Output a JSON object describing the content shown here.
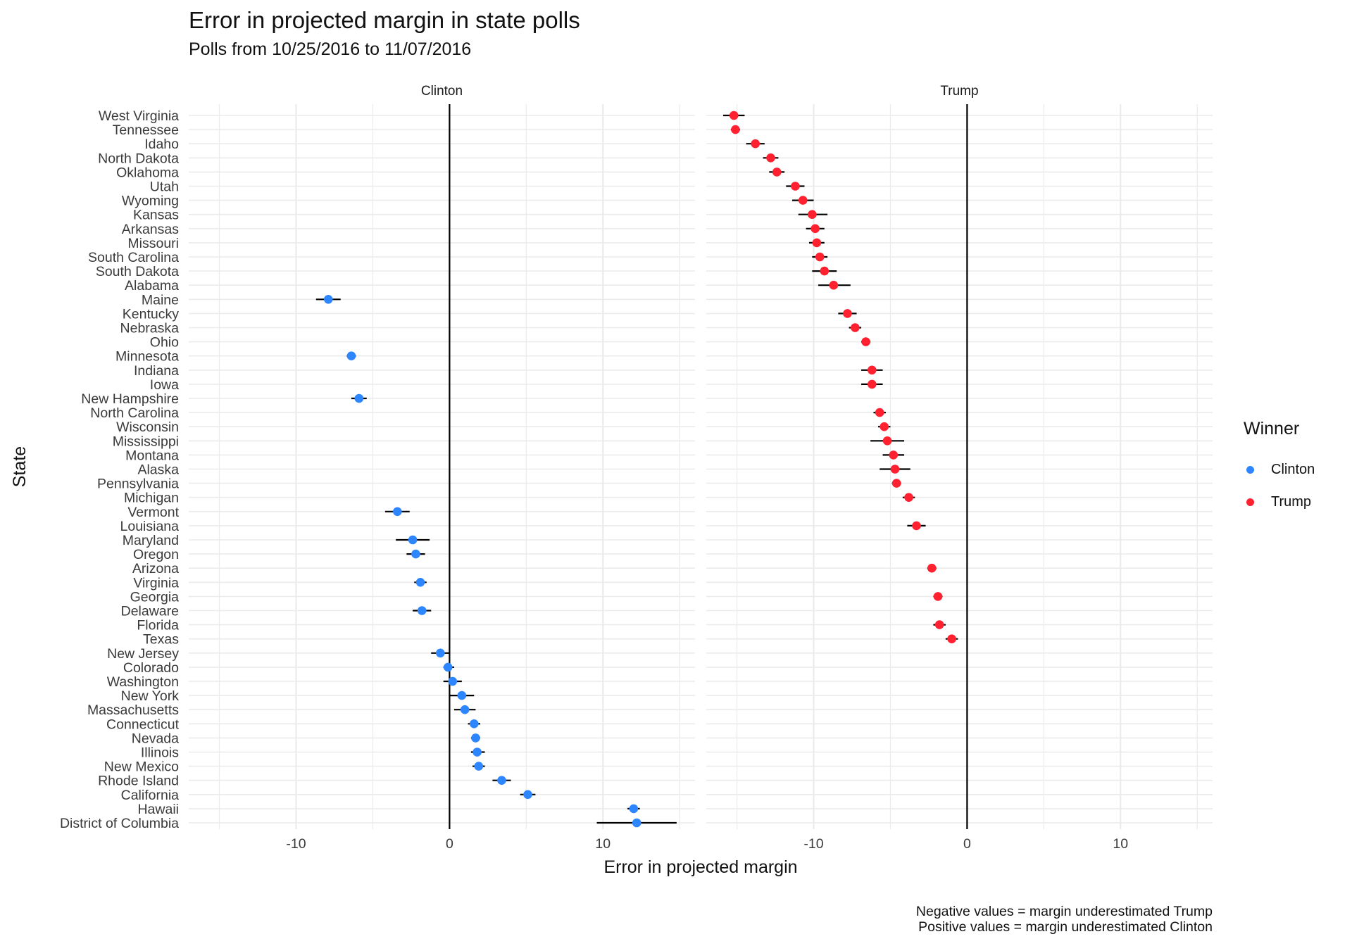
{
  "chart_data": {
    "type": "scatter",
    "title": "Error in projected margin in state polls",
    "subtitle": "Polls from 10/25/2016 to 11/07/2016",
    "xlabel": "Error in projected margin",
    "ylabel": "State",
    "xlim": [
      -17,
      16
    ],
    "x_ticks": [
      -10,
      0,
      10
    ],
    "grid": true,
    "facets": [
      "Clinton",
      "Trump"
    ],
    "legend": {
      "title": "Winner",
      "position": "right",
      "entries": [
        {
          "name": "Clinton",
          "color": "#2E86FF"
        },
        {
          "name": "Trump",
          "color": "#FF2030"
        }
      ]
    },
    "caption": [
      "Negative values = margin underestimated Trump",
      "Positive values = margin underestimated Clinton"
    ],
    "points": [
      {
        "state": "West Virginia",
        "winner": "Trump",
        "x": -15.2,
        "lo": -15.9,
        "hi": -14.5
      },
      {
        "state": "Tennessee",
        "winner": "Trump",
        "x": -15.1,
        "lo": -15.4,
        "hi": -14.8
      },
      {
        "state": "Idaho",
        "winner": "Trump",
        "x": -13.8,
        "lo": -14.4,
        "hi": -13.2
      },
      {
        "state": "North Dakota",
        "winner": "Trump",
        "x": -12.8,
        "lo": -13.3,
        "hi": -12.3
      },
      {
        "state": "Oklahoma",
        "winner": "Trump",
        "x": -12.4,
        "lo": -12.9,
        "hi": -11.9
      },
      {
        "state": "Utah",
        "winner": "Trump",
        "x": -11.2,
        "lo": -11.8,
        "hi": -10.6
      },
      {
        "state": "Wyoming",
        "winner": "Trump",
        "x": -10.7,
        "lo": -11.4,
        "hi": -10.0
      },
      {
        "state": "Kansas",
        "winner": "Trump",
        "x": -10.1,
        "lo": -11.0,
        "hi": -9.1
      },
      {
        "state": "Arkansas",
        "winner": "Trump",
        "x": -9.9,
        "lo": -10.5,
        "hi": -9.3
      },
      {
        "state": "Missouri",
        "winner": "Trump",
        "x": -9.8,
        "lo": -10.3,
        "hi": -9.3
      },
      {
        "state": "South Carolina",
        "winner": "Trump",
        "x": -9.6,
        "lo": -10.1,
        "hi": -9.1
      },
      {
        "state": "South Dakota",
        "winner": "Trump",
        "x": -9.3,
        "lo": -10.1,
        "hi": -8.5
      },
      {
        "state": "Alabama",
        "winner": "Trump",
        "x": -8.7,
        "lo": -9.7,
        "hi": -7.6
      },
      {
        "state": "Maine",
        "winner": "Clinton",
        "x": -7.9,
        "lo": -8.7,
        "hi": -7.1
      },
      {
        "state": "Kentucky",
        "winner": "Trump",
        "x": -7.8,
        "lo": -8.4,
        "hi": -7.2
      },
      {
        "state": "Nebraska",
        "winner": "Trump",
        "x": -7.3,
        "lo": -7.7,
        "hi": -6.9
      },
      {
        "state": "Ohio",
        "winner": "Trump",
        "x": -6.6,
        "lo": -6.9,
        "hi": -6.3
      },
      {
        "state": "Minnesota",
        "winner": "Clinton",
        "x": -6.4,
        "lo": -6.7,
        "hi": -6.1
      },
      {
        "state": "Indiana",
        "winner": "Trump",
        "x": -6.2,
        "lo": -6.9,
        "hi": -5.5
      },
      {
        "state": "Iowa",
        "winner": "Trump",
        "x": -6.2,
        "lo": -6.9,
        "hi": -5.5
      },
      {
        "state": "New Hampshire",
        "winner": "Clinton",
        "x": -5.9,
        "lo": -6.4,
        "hi": -5.4
      },
      {
        "state": "North Carolina",
        "winner": "Trump",
        "x": -5.7,
        "lo": -6.1,
        "hi": -5.3
      },
      {
        "state": "Wisconsin",
        "winner": "Trump",
        "x": -5.4,
        "lo": -5.8,
        "hi": -5.0
      },
      {
        "state": "Mississippi",
        "winner": "Trump",
        "x": -5.2,
        "lo": -6.3,
        "hi": -4.1
      },
      {
        "state": "Montana",
        "winner": "Trump",
        "x": -4.8,
        "lo": -5.5,
        "hi": -4.1
      },
      {
        "state": "Alaska",
        "winner": "Trump",
        "x": -4.7,
        "lo": -5.7,
        "hi": -3.7
      },
      {
        "state": "Pennsylvania",
        "winner": "Trump",
        "x": -4.6,
        "lo": -4.9,
        "hi": -4.3
      },
      {
        "state": "Michigan",
        "winner": "Trump",
        "x": -3.8,
        "lo": -4.2,
        "hi": -3.4
      },
      {
        "state": "Vermont",
        "winner": "Clinton",
        "x": -3.4,
        "lo": -4.2,
        "hi": -2.6
      },
      {
        "state": "Louisiana",
        "winner": "Trump",
        "x": -3.3,
        "lo": -3.9,
        "hi": -2.7
      },
      {
        "state": "Maryland",
        "winner": "Clinton",
        "x": -2.4,
        "lo": -3.5,
        "hi": -1.3
      },
      {
        "state": "Oregon",
        "winner": "Clinton",
        "x": -2.2,
        "lo": -2.8,
        "hi": -1.6
      },
      {
        "state": "Arizona",
        "winner": "Trump",
        "x": -2.3,
        "lo": -2.6,
        "hi": -2.0
      },
      {
        "state": "Virginia",
        "winner": "Clinton",
        "x": -1.9,
        "lo": -2.3,
        "hi": -1.5
      },
      {
        "state": "Georgia",
        "winner": "Trump",
        "x": -1.9,
        "lo": -2.2,
        "hi": -1.6
      },
      {
        "state": "Delaware",
        "winner": "Clinton",
        "x": -1.8,
        "lo": -2.4,
        "hi": -1.2
      },
      {
        "state": "Florida",
        "winner": "Trump",
        "x": -1.8,
        "lo": -2.2,
        "hi": -1.4
      },
      {
        "state": "Texas",
        "winner": "Trump",
        "x": -1.0,
        "lo": -1.4,
        "hi": -0.6
      },
      {
        "state": "New Jersey",
        "winner": "Clinton",
        "x": -0.6,
        "lo": -1.2,
        "hi": 0.0
      },
      {
        "state": "Colorado",
        "winner": "Clinton",
        "x": -0.1,
        "lo": -0.4,
        "hi": 0.3
      },
      {
        "state": "Washington",
        "winner": "Clinton",
        "x": 0.2,
        "lo": -0.4,
        "hi": 0.8
      },
      {
        "state": "New York",
        "winner": "Clinton",
        "x": 0.8,
        "lo": 0.0,
        "hi": 1.6
      },
      {
        "state": "Massachusetts",
        "winner": "Clinton",
        "x": 1.0,
        "lo": 0.3,
        "hi": 1.7
      },
      {
        "state": "Connecticut",
        "winner": "Clinton",
        "x": 1.6,
        "lo": 1.2,
        "hi": 2.0
      },
      {
        "state": "Nevada",
        "winner": "Clinton",
        "x": 1.7,
        "lo": 1.4,
        "hi": 2.0
      },
      {
        "state": "Illinois",
        "winner": "Clinton",
        "x": 1.8,
        "lo": 1.4,
        "hi": 2.3
      },
      {
        "state": "New Mexico",
        "winner": "Clinton",
        "x": 1.9,
        "lo": 1.5,
        "hi": 2.3
      },
      {
        "state": "Rhode Island",
        "winner": "Clinton",
        "x": 3.4,
        "lo": 2.8,
        "hi": 4.0
      },
      {
        "state": "California",
        "winner": "Clinton",
        "x": 5.1,
        "lo": 4.6,
        "hi": 5.6
      },
      {
        "state": "Hawaii",
        "winner": "Clinton",
        "x": 12.0,
        "lo": 11.6,
        "hi": 12.4
      },
      {
        "state": "District of Columbia",
        "winner": "Clinton",
        "x": 12.2,
        "lo": 9.6,
        "hi": 14.8
      }
    ]
  }
}
